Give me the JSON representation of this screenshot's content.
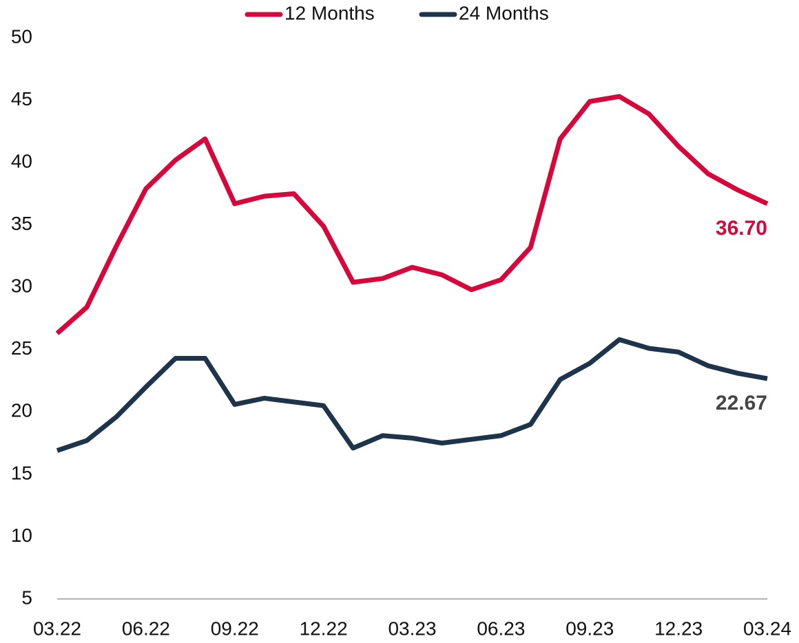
{
  "chart_data": {
    "type": "line",
    "categories": [
      "03.22",
      null,
      null,
      "06.22",
      null,
      null,
      "09.22",
      null,
      null,
      "12.22",
      null,
      null,
      "03.23",
      null,
      null,
      "06.23",
      null,
      null,
      "09.23",
      null,
      null,
      "12.23",
      null,
      null,
      "03.24"
    ],
    "series": [
      {
        "name": "12 Months",
        "color": "#d7063b",
        "values": [
          26.3,
          28.4,
          33.3,
          37.9,
          40.2,
          41.9,
          36.7,
          37.3,
          37.5,
          34.9,
          30.4,
          30.7,
          31.6,
          31.0,
          29.8,
          30.6,
          33.2,
          41.9,
          44.9,
          45.3,
          43.9,
          41.3,
          39.1,
          37.8,
          36.7
        ],
        "value_labels": [
          null,
          null,
          null,
          null,
          null,
          null,
          null,
          null,
          null,
          null,
          null,
          null,
          null,
          null,
          null,
          null,
          null,
          null,
          null,
          null,
          null,
          null,
          null,
          null,
          "36.70"
        ]
      },
      {
        "name": "24 Months",
        "color": "#1e344a",
        "values": [
          16.9,
          17.7,
          19.6,
          22.0,
          24.3,
          24.3,
          20.6,
          21.1,
          20.8,
          20.5,
          17.1,
          18.1,
          17.9,
          17.5,
          17.8,
          18.1,
          19.0,
          22.6,
          23.9,
          25.8,
          25.1,
          24.8,
          23.7,
          23.1,
          22.67
        ],
        "value_labels": [
          null,
          null,
          null,
          null,
          null,
          null,
          null,
          null,
          null,
          null,
          null,
          null,
          null,
          null,
          null,
          null,
          null,
          null,
          null,
          null,
          null,
          null,
          null,
          null,
          "22.67"
        ]
      }
    ],
    "ylim": [
      5,
      50
    ],
    "yticks": [
      5,
      10,
      15,
      20,
      25,
      30,
      35,
      40,
      45,
      50
    ],
    "grid": false,
    "legend": "top"
  }
}
